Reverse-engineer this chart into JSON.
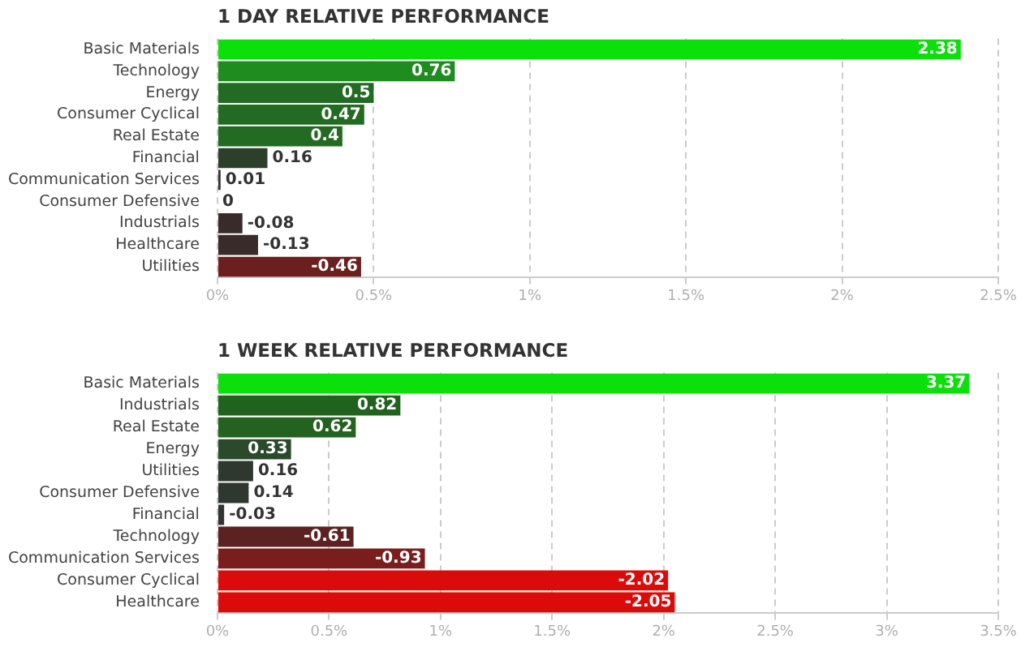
{
  "chart_data": [
    {
      "type": "bar",
      "orientation": "horizontal",
      "title": "1 DAY RELATIVE PERFORMANCE",
      "categories": [
        "Basic Materials",
        "Technology",
        "Energy",
        "Consumer Cyclical",
        "Real Estate",
        "Financial",
        "Communication Services",
        "Consumer Defensive",
        "Industrials",
        "Healthcare",
        "Utilities"
      ],
      "values": [
        2.38,
        0.76,
        0.5,
        0.47,
        0.4,
        0.16,
        0.01,
        0,
        -0.08,
        -0.13,
        -0.46
      ],
      "base": [
        0,
        0,
        0,
        0,
        0,
        0,
        0,
        null,
        0.08,
        0.13,
        0.46
      ],
      "data_labels": true,
      "colors": [
        "#0be00b",
        "#1e8c1e",
        "#236a23",
        "#236a23",
        "#236a23",
        "#2b3f2b",
        "#333333",
        "#333333",
        "#3a2b2b",
        "#3a2b2b",
        "#6b1f1f"
      ],
      "xlim": [
        0,
        2.5
      ],
      "xticks": [
        {
          "value": 0,
          "label": "0%"
        },
        {
          "value": 0.5,
          "label": "0.5%"
        },
        {
          "value": 1,
          "label": "1%"
        },
        {
          "value": 1.5,
          "label": "1.5%"
        },
        {
          "value": 2,
          "label": "2%"
        },
        {
          "value": 2.5,
          "label": "2.5%"
        }
      ],
      "grid": "x",
      "legend": false
    },
    {
      "type": "bar",
      "orientation": "horizontal",
      "title": "1 WEEK RELATIVE PERFORMANCE",
      "categories": [
        "Basic Materials",
        "Industrials",
        "Real Estate",
        "Energy",
        "Utilities",
        "Consumer Defensive",
        "Financial",
        "Technology",
        "Communication Services",
        "Consumer Cyclical",
        "Healthcare"
      ],
      "values": [
        3.37,
        0.82,
        0.62,
        0.33,
        0.16,
        0.14,
        -0.03,
        -0.61,
        -0.93,
        -2.02,
        -2.05
      ],
      "base": [
        0,
        0,
        0,
        0,
        0,
        0,
        0.03,
        0.61,
        0.93,
        2.02,
        2.05
      ],
      "data_labels": true,
      "colors": [
        "#0be00b",
        "#22621f",
        "#24621f",
        "#2b4a2b",
        "#2e382e",
        "#2e382e",
        "#333333",
        "#5c2222",
        "#7a1d1d",
        "#dc0b0b",
        "#dc0b0b"
      ],
      "xlim": [
        0,
        3.5
      ],
      "xticks": [
        {
          "value": 0,
          "label": "0%"
        },
        {
          "value": 0.5,
          "label": "0.5%"
        },
        {
          "value": 1,
          "label": "1%"
        },
        {
          "value": 1.5,
          "label": "1.5%"
        },
        {
          "value": 2,
          "label": "2%"
        },
        {
          "value": 2.5,
          "label": "2.5%"
        },
        {
          "value": 3,
          "label": "3%"
        },
        {
          "value": 3.5,
          "label": "3.5%"
        }
      ],
      "grid": "x",
      "legend": false
    }
  ]
}
